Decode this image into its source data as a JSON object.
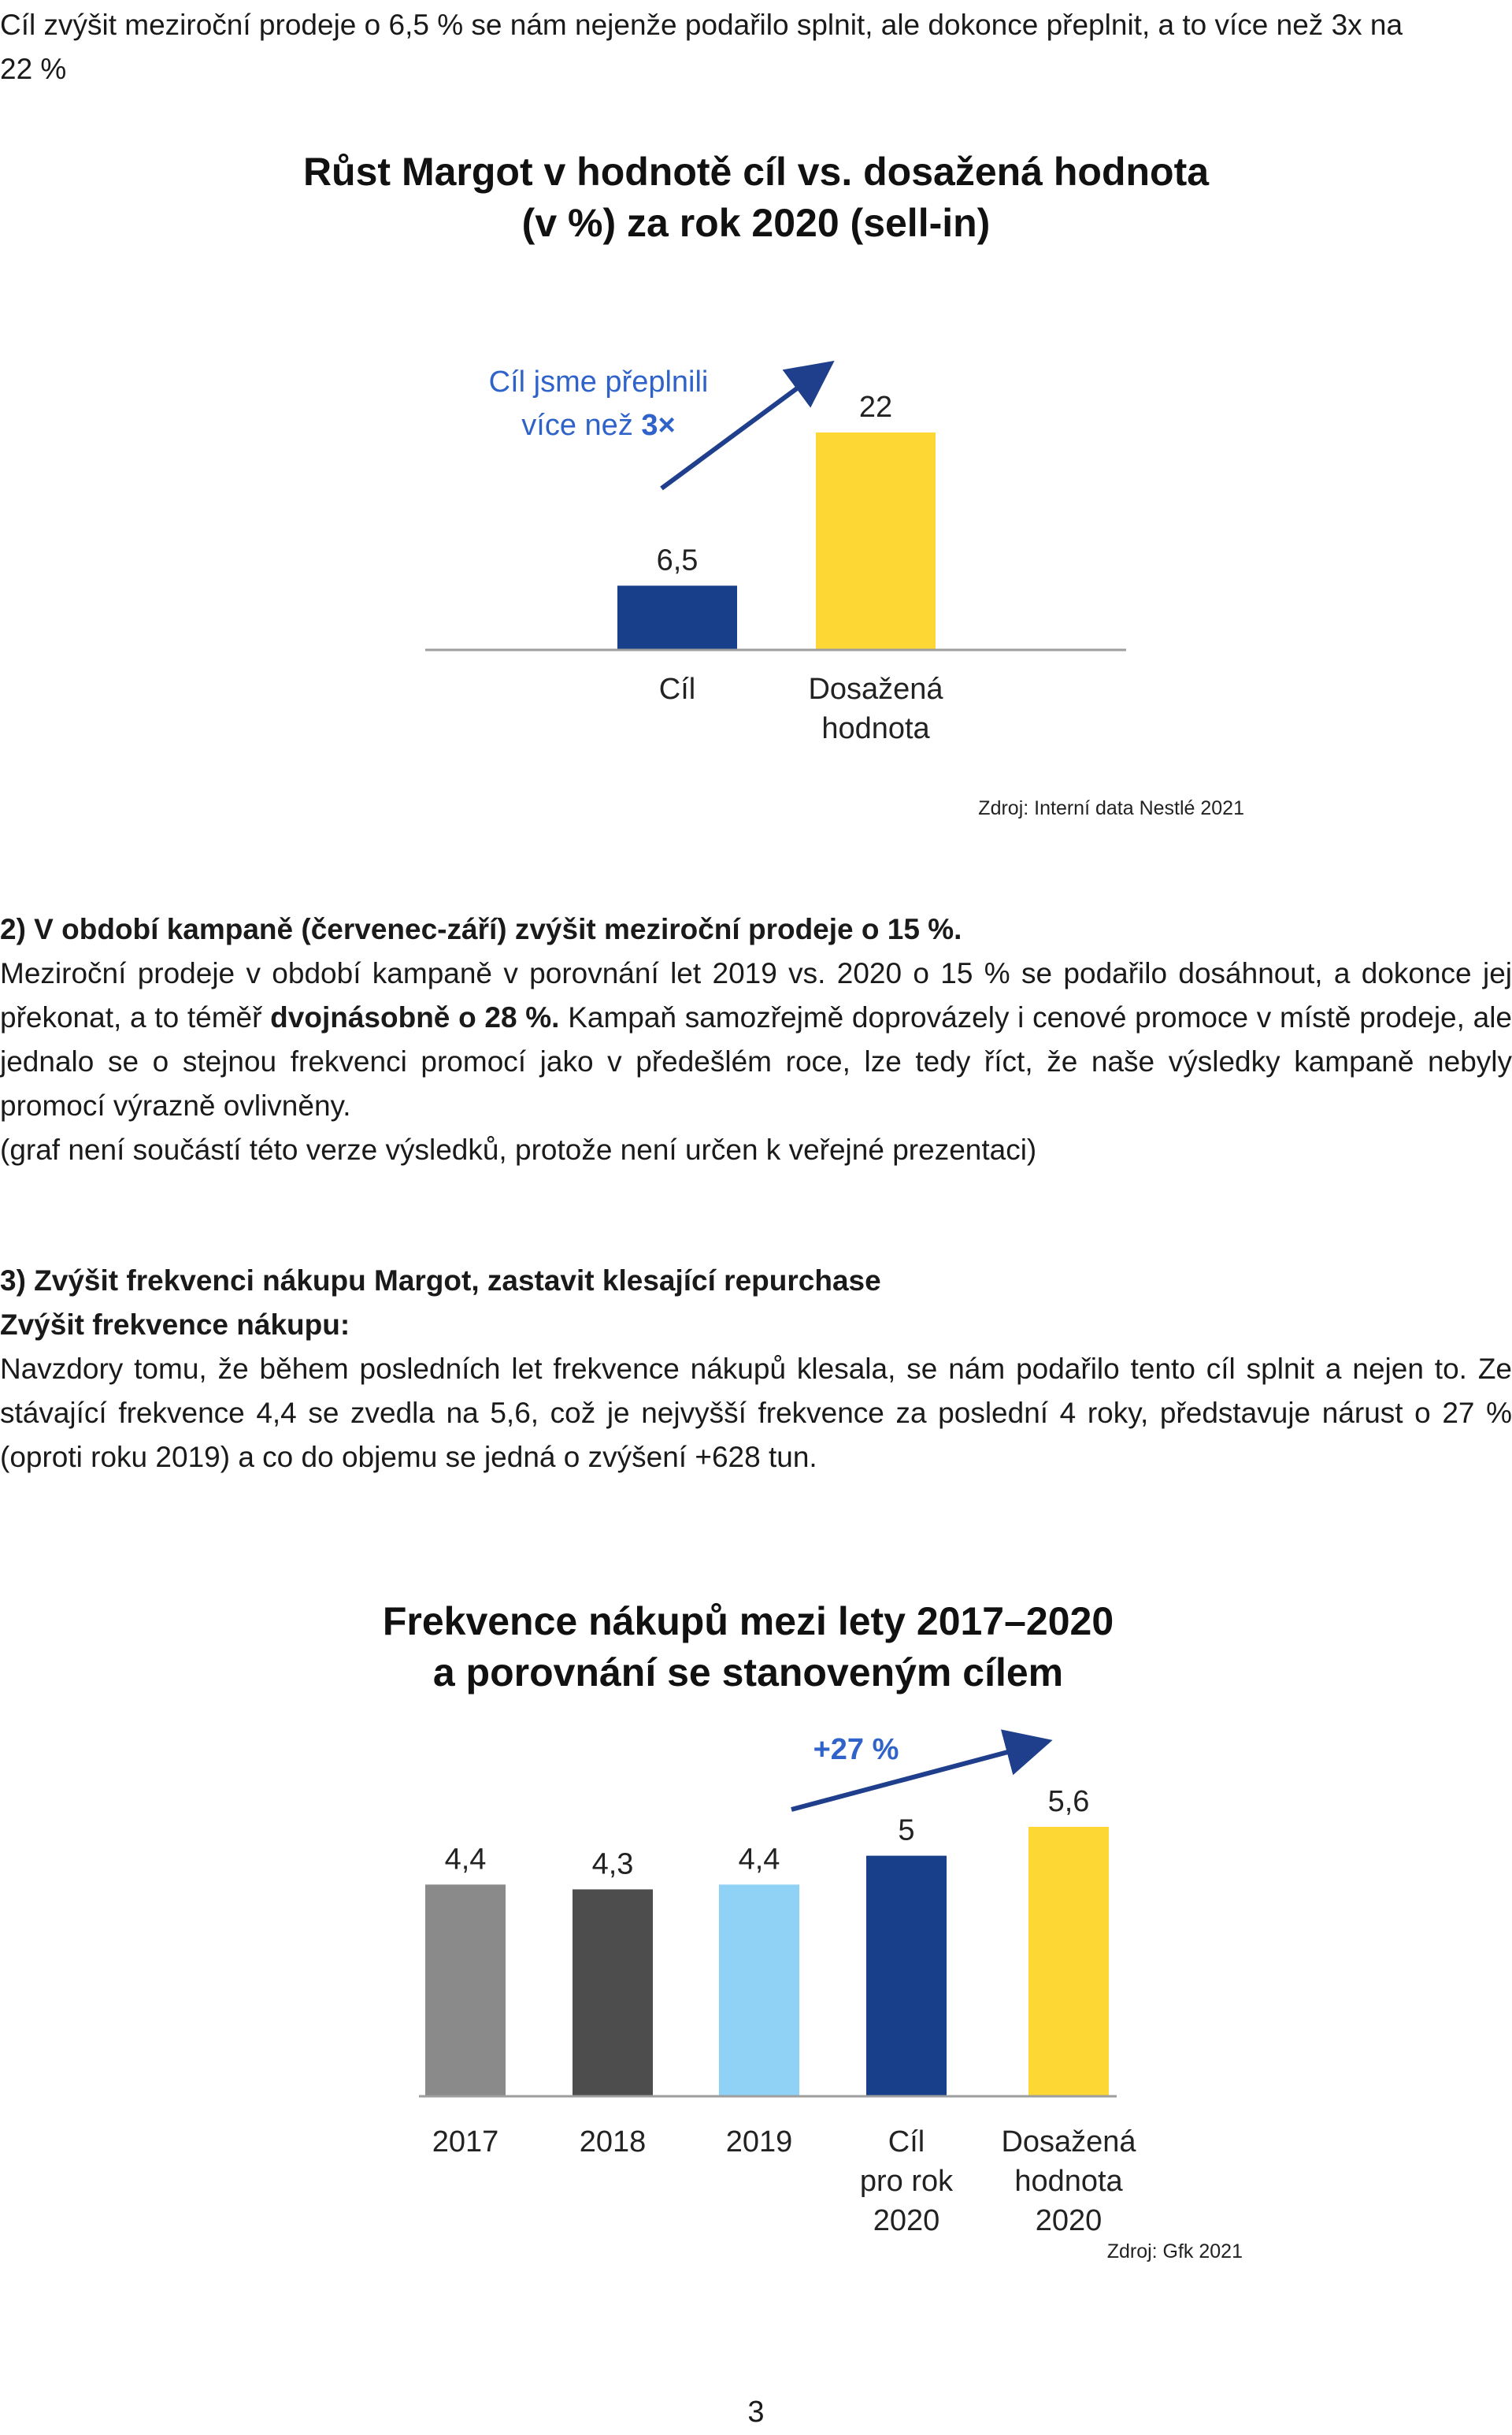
{
  "intro": {
    "line1": "Cíl zvýšit meziroční prodeje o 6,5 % se nám nejenže podařilo splnit, ale dokonce přeplnit, a to více než 3x na",
    "line2": "22 %"
  },
  "chart1": {
    "title_line1": "Růst Margot v hodnotě cíl vs. dosažená hodnota",
    "title_line2": "(v %) za rok 2020 (sell-in)",
    "annotation_line1": "Cíl jsme přeplnili",
    "annotation_line2_prefix": "více než ",
    "annotation_line2_bold": "3×",
    "source": "Zdroj: Interní data Nestlé 2021"
  },
  "section2": {
    "heading": "2) V období kampaně (červenec-září) zvýšit meziroční prodeje o 15 %.",
    "para_part1": "Meziroční prodeje v období kampaně v porovnání let 2019 vs. 2020 o 15 % se podařilo dosáhnout, a dokonce jej překonat, a to téměř ",
    "para_bold": "dvojnásobně o 28 %.",
    "para_part2": " Kampaň samozřejmě doprovázely i cenové promoce v místě prodeje, ale jednalo se o stejnou frekvenci promocí jako v předešlém roce, lze tedy říct, že naše výsledky kampaně nebyly promocí výrazně ovlivněny.",
    "note": "(graf není součástí této verze výsledků, protože není určen k veřejné prezentaci)"
  },
  "section3": {
    "heading": "3) Zvýšit frekvenci nákupu Margot, zastavit klesající repurchase",
    "subheading": "Zvýšit frekvence nákupu:",
    "para": "Navzdory tomu, že během posledních let frekvence nákupů klesala, se nám podařilo tento cíl splnit a nejen to. Ze stávající frekvence 4,4 se zvedla na 5,6, což je nejvyšší frekvence za poslední 4 roky, představuje nárust o 27 % (oproti roku 2019) a co do objemu se jedná o zvýšení +628 tun."
  },
  "chart2": {
    "title_line1": "Frekvence nákupů mezi lety 2017–2020",
    "title_line2": "a porovnání se stanoveným cílem",
    "annotation": "+27 %",
    "source": "Zdroj: Gfk 2021"
  },
  "page_number": "3",
  "chart_data": [
    {
      "type": "bar",
      "title": "Růst Margot v hodnotě cíl vs. dosažená hodnota (v %) za rok 2020 (sell-in)",
      "categories": [
        [
          "Cíl"
        ],
        [
          "Dosažená",
          "hodnota"
        ]
      ],
      "values": [
        6.5,
        22
      ],
      "value_labels": [
        "6,5",
        "22"
      ],
      "colors": [
        "#173F8A",
        "#FDD835"
      ],
      "ylim": [
        0,
        22
      ],
      "grid": false,
      "legend": "none"
    },
    {
      "type": "bar",
      "title": "Frekvence nákupů mezi lety 2017–2020 a porovnání se stanoveným cílem",
      "categories": [
        [
          "2017"
        ],
        [
          "2018"
        ],
        [
          "2019"
        ],
        [
          "Cíl",
          "pro rok",
          "2020"
        ],
        [
          "Dosažená",
          "hodnota",
          "2020"
        ]
      ],
      "values": [
        4.4,
        4.3,
        4.4,
        5,
        5.6
      ],
      "value_labels": [
        "4,4",
        "4,3",
        "4,4",
        "5",
        "5,6"
      ],
      "colors": [
        "#8A8A8A",
        "#4D4D4D",
        "#90D2F5",
        "#173F8A",
        "#FDD835"
      ],
      "ylim": [
        0,
        5.6
      ],
      "grid": false,
      "legend": "none"
    }
  ]
}
